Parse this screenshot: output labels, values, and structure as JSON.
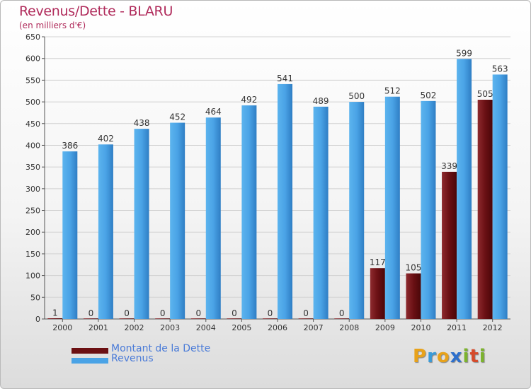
{
  "header": {
    "title": "Revenus/Dette - BLARU",
    "subtitle": "(en milliers d'€)"
  },
  "legend": {
    "items": [
      {
        "label": "Montant de la Dette",
        "color": "#6b0f12"
      },
      {
        "label": "Revenus",
        "color": "#4aa3e6"
      }
    ]
  },
  "logo": {
    "letters": [
      {
        "ch": "P",
        "color": "#e8a21a"
      },
      {
        "ch": "r",
        "color": "#3a9bd8"
      },
      {
        "ch": "o",
        "color": "#e8a21a"
      },
      {
        "ch": "x",
        "color": "#2d6fcc"
      },
      {
        "ch": "i",
        "color": "#7cb32d"
      },
      {
        "ch": "t",
        "color": "#d64a2a"
      },
      {
        "ch": "i",
        "color": "#7cb32d"
      }
    ]
  },
  "chart_data": {
    "type": "bar",
    "categories": [
      "2000",
      "2001",
      "2002",
      "2003",
      "2004",
      "2005",
      "2006",
      "2007",
      "2008",
      "2009",
      "2010",
      "2011",
      "2012"
    ],
    "series": [
      {
        "name": "Montant de la Dette",
        "values": [
          1,
          0,
          0,
          0,
          0,
          0,
          0,
          0,
          0,
          117,
          105,
          339,
          505
        ],
        "color": "#6b0f12"
      },
      {
        "name": "Revenus",
        "values": [
          386,
          402,
          438,
          452,
          464,
          492,
          541,
          489,
          500,
          512,
          502,
          599,
          563
        ],
        "color": "#4aa3e6"
      }
    ],
    "ylim": [
      0,
      650
    ],
    "yticks": [
      0,
      50,
      100,
      150,
      200,
      250,
      300,
      350,
      400,
      450,
      500,
      550,
      600,
      650
    ],
    "grid": true,
    "legend_position": "bottom-left"
  }
}
